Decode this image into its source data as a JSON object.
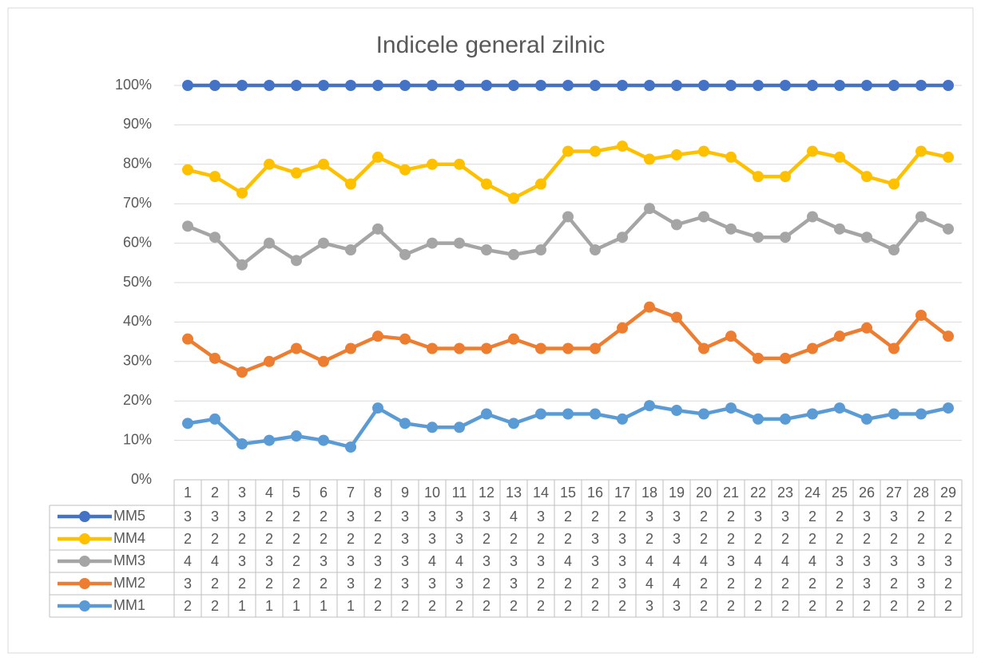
{
  "chart_data": {
    "type": "line",
    "title": "Indicele general zilnic",
    "categories": [
      1,
      2,
      3,
      4,
      5,
      6,
      7,
      8,
      9,
      10,
      11,
      12,
      13,
      14,
      15,
      16,
      17,
      18,
      19,
      20,
      21,
      22,
      23,
      24,
      25,
      26,
      27,
      28,
      29
    ],
    "ylim": [
      0,
      100
    ],
    "yticks": [
      {
        "value": 0,
        "label": "0%"
      },
      {
        "value": 10,
        "label": "10%"
      },
      {
        "value": 20,
        "label": "20%"
      },
      {
        "value": 30,
        "label": "30%"
      },
      {
        "value": 40,
        "label": "40%"
      },
      {
        "value": 50,
        "label": "50%"
      },
      {
        "value": 60,
        "label": "60%"
      },
      {
        "value": 70,
        "label": "70%"
      },
      {
        "value": 80,
        "label": "80%"
      },
      {
        "value": 90,
        "label": "90%"
      },
      {
        "value": 100,
        "label": "100%"
      }
    ],
    "grid": true,
    "series": [
      {
        "name": "MM5",
        "color": "#4472c4",
        "values": [
          100,
          100,
          100,
          100,
          100,
          100,
          100,
          100,
          100,
          100,
          100,
          100,
          100,
          100,
          100,
          100,
          100,
          100,
          100,
          100,
          100,
          100,
          100,
          100,
          100,
          100,
          100,
          100,
          100
        ],
        "table_values": [
          3,
          3,
          3,
          2,
          2,
          2,
          3,
          2,
          3,
          3,
          3,
          3,
          4,
          3,
          2,
          2,
          2,
          3,
          3,
          2,
          2,
          3,
          3,
          2,
          2,
          3,
          3,
          2,
          2
        ]
      },
      {
        "name": "MM4",
        "color": "#ffc000",
        "values": [
          78.6,
          76.9,
          72.7,
          80,
          77.8,
          80,
          75,
          81.8,
          78.6,
          80,
          80,
          75,
          71.4,
          75,
          83.3,
          83.3,
          84.6,
          81.3,
          82.4,
          83.3,
          81.8,
          76.9,
          76.9,
          83.3,
          81.8,
          76.9,
          75,
          83.3,
          81.8
        ],
        "table_values": [
          2,
          2,
          2,
          2,
          2,
          2,
          2,
          2,
          3,
          3,
          3,
          2,
          2,
          2,
          2,
          3,
          3,
          2,
          3,
          2,
          2,
          2,
          2,
          2,
          2,
          2,
          2,
          2,
          2
        ]
      },
      {
        "name": "MM3",
        "color": "#a5a5a5",
        "values": [
          64.3,
          61.5,
          54.5,
          60,
          55.6,
          60,
          58.3,
          63.6,
          57.1,
          60,
          60,
          58.3,
          57.1,
          58.3,
          66.7,
          58.3,
          61.5,
          68.8,
          64.7,
          66.7,
          63.6,
          61.5,
          61.5,
          66.7,
          63.6,
          61.5,
          58.3,
          66.7,
          63.6
        ],
        "table_values": [
          4,
          4,
          3,
          3,
          2,
          3,
          3,
          3,
          3,
          4,
          4,
          3,
          3,
          3,
          4,
          3,
          3,
          4,
          4,
          4,
          3,
          4,
          4,
          4,
          3,
          3,
          3,
          3,
          3
        ]
      },
      {
        "name": "MM2",
        "color": "#ed7d31",
        "values": [
          35.7,
          30.8,
          27.3,
          30,
          33.3,
          30,
          33.3,
          36.4,
          35.7,
          33.3,
          33.3,
          33.3,
          35.7,
          33.3,
          33.3,
          33.3,
          38.5,
          43.8,
          41.2,
          33.3,
          36.4,
          30.8,
          30.8,
          33.3,
          36.4,
          38.5,
          33.3,
          41.7,
          36.4
        ],
        "table_values": [
          3,
          2,
          2,
          2,
          2,
          2,
          3,
          2,
          3,
          3,
          3,
          2,
          3,
          2,
          2,
          2,
          3,
          4,
          4,
          2,
          2,
          2,
          2,
          2,
          2,
          3,
          2,
          3,
          2
        ]
      },
      {
        "name": "MM1",
        "color": "#5b9bd5",
        "values": [
          14.3,
          15.4,
          9.1,
          10,
          11.1,
          10,
          8.3,
          18.2,
          14.3,
          13.3,
          13.3,
          16.7,
          14.3,
          16.7,
          16.7,
          16.7,
          15.4,
          18.8,
          17.6,
          16.7,
          18.2,
          15.4,
          15.4,
          16.7,
          18.2,
          15.4,
          16.7,
          16.7,
          18.2
        ],
        "table_values": [
          2,
          2,
          1,
          1,
          1,
          1,
          1,
          2,
          2,
          2,
          2,
          2,
          2,
          2,
          2,
          2,
          2,
          3,
          3,
          2,
          2,
          2,
          2,
          2,
          2,
          2,
          2,
          2,
          2
        ]
      }
    ]
  }
}
